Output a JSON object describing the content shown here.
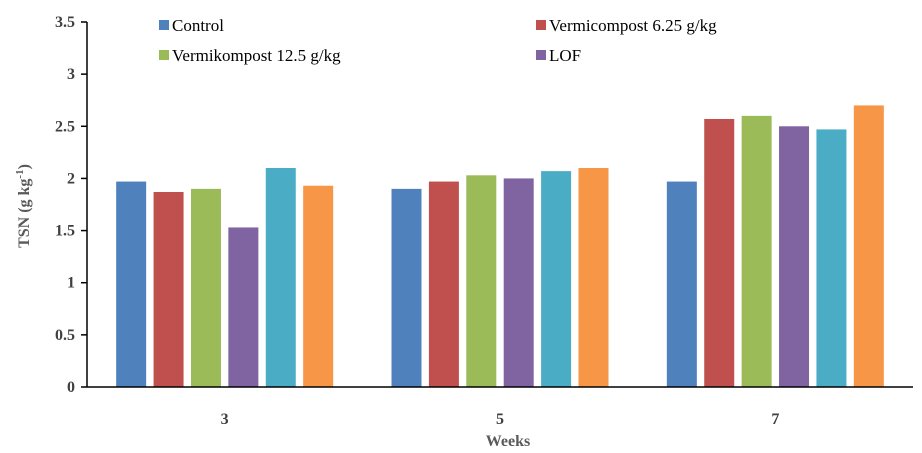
{
  "chart_data": {
    "type": "bar",
    "xlabel": "Weeks",
    "ylabel": "TSN (g kg",
    "ylabel_superscript": "-1",
    "ylabel_suffix": ")",
    "categories": [
      "3",
      "5",
      "7"
    ],
    "ylim": [
      0,
      3.5
    ],
    "y_ticks": [
      "0",
      "0.5",
      "1",
      "1.5",
      "2",
      "2.5",
      "3",
      "3.5"
    ],
    "grid": false,
    "legend_position": "top",
    "series": [
      {
        "name": "Control",
        "color": "#4f81bd",
        "values": [
          1.97,
          1.9,
          1.97
        ]
      },
      {
        "name": "Vermicompost 6.25 g/kg",
        "color": "#c0504d",
        "values": [
          1.87,
          1.97,
          2.57
        ]
      },
      {
        "name": "Vermikompost 12.5 g/kg",
        "color": "#9bbb59",
        "values": [
          1.9,
          2.03,
          2.6
        ]
      },
      {
        "name": "LOF",
        "color": "#8064a2",
        "values": [
          1.53,
          2.0,
          2.5
        ]
      },
      {
        "color": "#4bacc6",
        "values": [
          2.1,
          2.07,
          2.47
        ]
      },
      {
        "color": "#f79646",
        "values": [
          1.93,
          2.1,
          2.7
        ]
      }
    ]
  }
}
